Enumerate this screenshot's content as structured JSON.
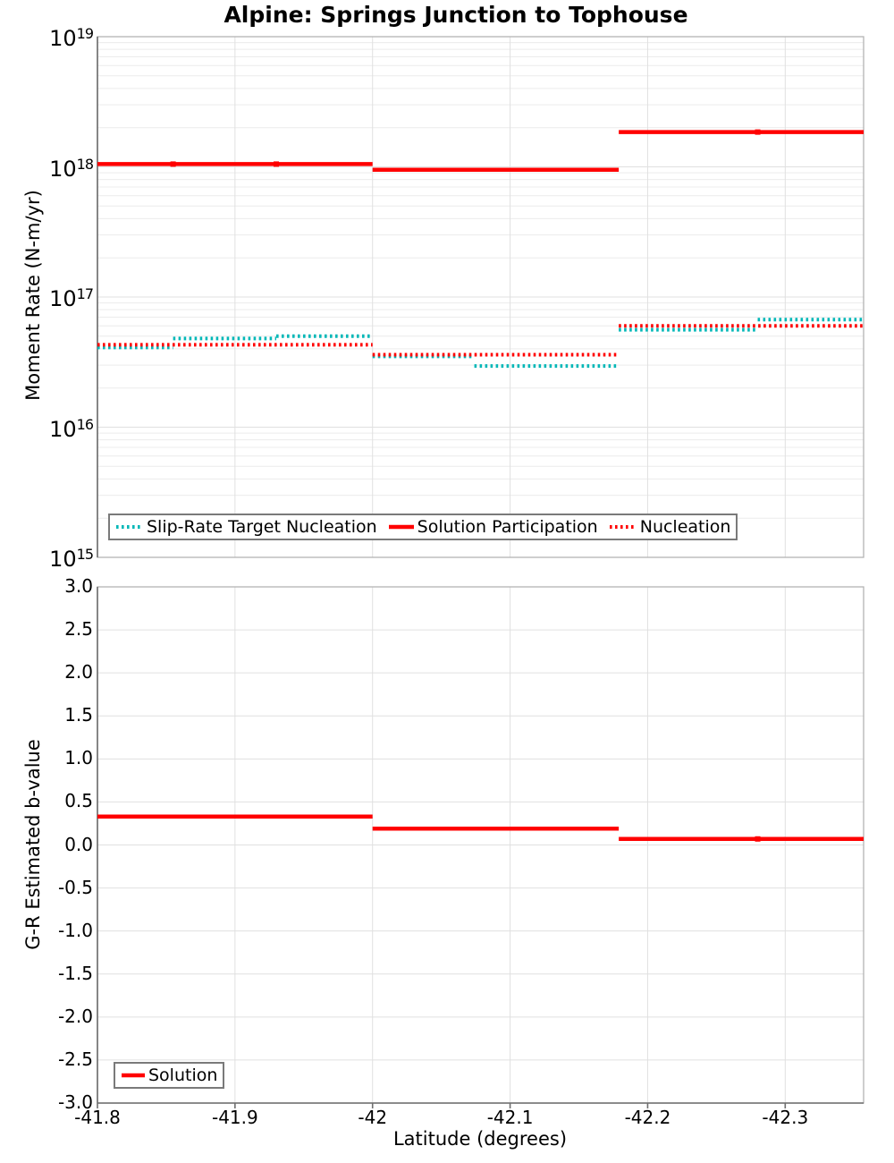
{
  "figure": {
    "title": "Alpine: Springs Junction to Tophouse"
  },
  "colors": {
    "series_red": "#ff0000",
    "series_teal": "#00b7b7",
    "grid_minor": "#ececec",
    "grid_major": "#e0e0e0",
    "border": "#b4b4b4",
    "spine": "#6e6e6e",
    "text": "#000000",
    "background": "#ffffff"
  },
  "top_plot": {
    "ylabel": "Moment Rate (N-m/yr)",
    "y_tick_exponents": [
      "19",
      "18",
      "17",
      "16",
      "15"
    ],
    "legend": [
      {
        "label": "Slip-Rate Target Nucleation",
        "color": "#00b7b7",
        "style": "dotted"
      },
      {
        "label": "Solution Participation",
        "color": "#ff0000",
        "style": "solid"
      },
      {
        "label": "Nucleation",
        "color": "#ff0000",
        "style": "dotted"
      }
    ]
  },
  "bottom_plot": {
    "ylabel": "G-R Estimated b-value",
    "y_tick_labels": [
      "3.0",
      "2.5",
      "2.0",
      "1.5",
      "1.0",
      "0.5",
      "0.0",
      "-0.5",
      "-1.0",
      "-1.5",
      "-2.0",
      "-2.5",
      "-3.0"
    ],
    "y_tick_values": [
      3.0,
      2.5,
      2.0,
      1.5,
      1.0,
      0.5,
      0.0,
      -0.5,
      -1.0,
      -1.5,
      -2.0,
      -2.5,
      -3.0
    ],
    "legend": [
      {
        "label": "Solution",
        "color": "#ff0000",
        "style": "solid"
      }
    ]
  },
  "x_axis": {
    "label": "Latitude (degrees)",
    "tick_labels": [
      "-41.8",
      "-41.9",
      "-42",
      "-42.1",
      "-42.2",
      "-42.3"
    ],
    "tick_values": [
      -41.8,
      -41.9,
      -42.0,
      -42.1,
      -42.2,
      -42.3
    ]
  },
  "chart_data": [
    {
      "type": "line",
      "title": "Alpine: Springs Junction to Tophouse",
      "xlabel": "Latitude (degrees)",
      "ylabel": "Moment Rate (N-m/yr)",
      "yscale": "log",
      "xlim": [
        -41.8,
        -42.357
      ],
      "ylim": [
        1000000000000000.0,
        1e+19
      ],
      "grid": true,
      "legend_position": "lower left",
      "series": [
        {
          "name": "Slip-Rate Target Nucleation",
          "color": "#00b7b7",
          "line_style": "dotted",
          "steps": [
            {
              "x_start": -41.8,
              "x_end": -41.855,
              "y": 4.1e+16
            },
            {
              "x_start": -41.855,
              "x_end": -41.93,
              "y": 4.8e+16
            },
            {
              "x_start": -41.93,
              "x_end": -42.0,
              "y": 5e+16
            },
            {
              "x_start": -42.0,
              "x_end": -42.074,
              "y": 3.5e+16
            },
            {
              "x_start": -42.074,
              "x_end": -42.179,
              "y": 2.95e+16
            },
            {
              "x_start": -42.179,
              "x_end": -42.28,
              "y": 5.6e+16
            },
            {
              "x_start": -42.28,
              "x_end": -42.357,
              "y": 6.7e+16
            }
          ]
        },
        {
          "name": "Solution Participation",
          "color": "#ff0000",
          "line_style": "solid",
          "steps": [
            {
              "x_start": -41.8,
              "x_end": -42.0,
              "y": 1.05e+18
            },
            {
              "x_start": -42.0,
              "x_end": -42.179,
              "y": 9.5e+17
            },
            {
              "x_start": -42.179,
              "x_end": -42.357,
              "y": 1.85e+18
            }
          ],
          "point_markers_x": [
            -41.855,
            -41.93,
            -42.28
          ]
        },
        {
          "name": "Nucleation",
          "color": "#ff0000",
          "line_style": "dotted",
          "steps": [
            {
              "x_start": -41.8,
              "x_end": -42.0,
              "y": 4.3e+16
            },
            {
              "x_start": -42.0,
              "x_end": -42.179,
              "y": 3.6e+16
            },
            {
              "x_start": -42.179,
              "x_end": -42.357,
              "y": 6e+16
            }
          ]
        }
      ]
    },
    {
      "type": "line",
      "title": "",
      "xlabel": "Latitude (degrees)",
      "ylabel": "G-R Estimated b-value",
      "yscale": "linear",
      "xlim": [
        -41.8,
        -42.357
      ],
      "ylim": [
        -3.0,
        3.0
      ],
      "y_tick_step": 0.5,
      "grid": true,
      "legend_position": "lower left",
      "series": [
        {
          "name": "Solution",
          "color": "#ff0000",
          "line_style": "solid",
          "steps": [
            {
              "x_start": -41.8,
              "x_end": -42.0,
              "y": 0.33
            },
            {
              "x_start": -42.0,
              "x_end": -42.179,
              "y": 0.19
            },
            {
              "x_start": -42.179,
              "x_end": -42.357,
              "y": 0.07
            }
          ],
          "point_markers_x": [
            -42.28
          ]
        }
      ]
    }
  ]
}
